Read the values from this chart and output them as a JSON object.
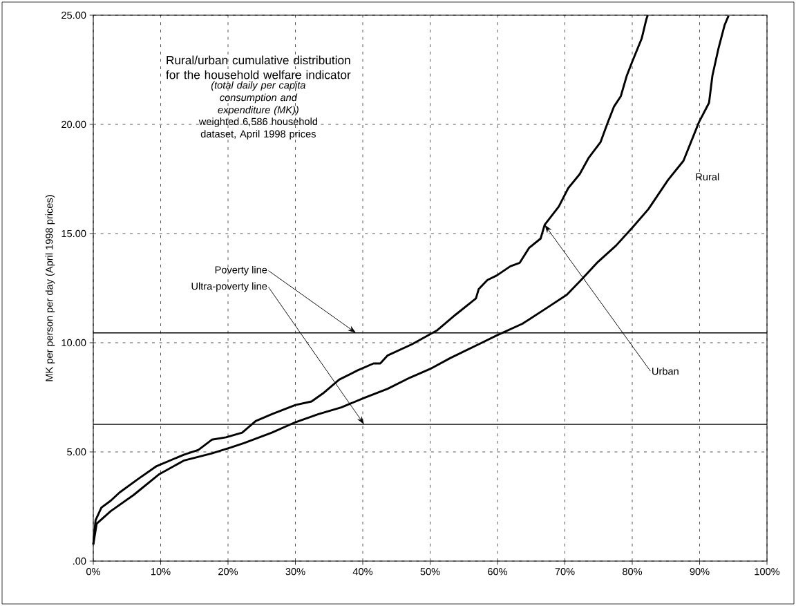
{
  "chart_data": {
    "type": "line",
    "title": "Rural/urban cumulative distribution for the household welfare indicator",
    "subtitle": "(total daily per capita consumption and expenditure (MK))",
    "annotations": [
      "weighted 6,586 household dataset, April 1998 prices"
    ],
    "ylabel": "MK per person per day (April 1998 prices)",
    "xlim": [
      0,
      100
    ],
    "ylim": [
      0,
      25
    ],
    "xticks": [
      {
        "value": 0,
        "label": "0%"
      },
      {
        "value": 10,
        "label": "10%"
      },
      {
        "value": 20,
        "label": "20%"
      },
      {
        "value": 30,
        "label": "30%"
      },
      {
        "value": 40,
        "label": "40%"
      },
      {
        "value": 50,
        "label": "50%"
      },
      {
        "value": 60,
        "label": "60%"
      },
      {
        "value": 70,
        "label": "70%"
      },
      {
        "value": 80,
        "label": "80%"
      },
      {
        "value": 90,
        "label": "90%"
      },
      {
        "value": 100,
        "label": "100%"
      }
    ],
    "yticks": [
      {
        "value": 0,
        "label": ".00"
      },
      {
        "value": 5,
        "label": "5.00"
      },
      {
        "value": 10,
        "label": "10.00"
      },
      {
        "value": 15,
        "label": "15.00"
      },
      {
        "value": 20,
        "label": "20.00"
      },
      {
        "value": 25,
        "label": "25.00"
      }
    ],
    "grid": true,
    "marker": "none",
    "line_style": "solid",
    "ref_lines": [
      {
        "axis": "y",
        "value": 10.45,
        "label": "Poverty line",
        "color": "#000000"
      },
      {
        "axis": "y",
        "value": 6.26,
        "label": "Ultra-poverty line",
        "color": "#000000"
      }
    ],
    "series": [
      {
        "name": "Urban",
        "color": "#000000",
        "x": [
          0,
          0.34,
          1.2,
          2.6,
          3.9,
          6.7,
          9.4,
          13.5,
          15.6,
          17.6,
          19.7,
          22.1,
          24.1,
          26.5,
          30,
          32.4,
          34.1,
          36.5,
          39.2,
          41.6,
          42.6,
          43.7,
          47.3,
          51,
          53.8,
          56.8,
          57.2,
          58.5,
          59.9,
          61.9,
          63.3,
          64.7,
          66.4,
          67,
          69.1,
          70.5,
          72.2,
          73.5,
          75.3,
          76.3,
          77.3,
          78.3,
          79.2,
          80,
          81.4,
          82.1,
          82.3
        ],
        "values": [
          0.76,
          1.87,
          2.45,
          2.77,
          3.14,
          3.77,
          4.35,
          4.88,
          5.09,
          5.56,
          5.67,
          5.88,
          6.41,
          6.73,
          7.15,
          7.31,
          7.68,
          8.31,
          8.73,
          9.05,
          9.05,
          9.42,
          9.93,
          10.56,
          11.29,
          12.03,
          12.45,
          12.87,
          13.08,
          13.5,
          13.66,
          14.35,
          14.77,
          15.4,
          16.24,
          17.08,
          17.72,
          18.45,
          19.19,
          20.03,
          20.82,
          21.29,
          22.24,
          22.87,
          23.93,
          24.82,
          25
        ]
      },
      {
        "name": "Rural",
        "color": "#000000",
        "x": [
          0,
          0.5,
          2.6,
          6,
          9.8,
          13.5,
          17.6,
          20.4,
          22.4,
          26.5,
          30,
          33.4,
          36.8,
          40.2,
          43.7,
          47,
          50,
          53,
          55,
          57.2,
          60,
          63.7,
          67.4,
          70.3,
          72.5,
          74.9,
          77.6,
          80.1,
          82.4,
          85.3,
          87.6,
          89.9,
          91.4,
          91.9,
          92.8,
          93.7,
          94.3
        ],
        "values": [
          0.76,
          1.71,
          2.29,
          3.03,
          3.98,
          4.61,
          4.93,
          5.2,
          5.41,
          5.88,
          6.36,
          6.73,
          7.04,
          7.47,
          7.89,
          8.4,
          8.8,
          9.3,
          9.6,
          9.93,
          10.35,
          10.87,
          11.61,
          12.2,
          12.9,
          13.7,
          14.45,
          15.3,
          16.12,
          17.45,
          18.33,
          20.1,
          20.99,
          22.23,
          23.48,
          24.54,
          24.98
        ]
      }
    ]
  }
}
